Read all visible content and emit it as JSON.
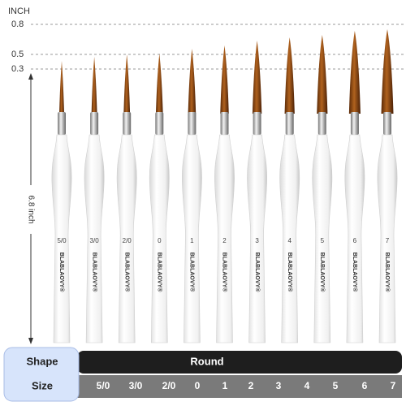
{
  "ruler": {
    "unit": "INCH",
    "marks": [
      "0.8",
      "0.5",
      "0.3"
    ],
    "length": "6.8 inch"
  },
  "brushes": {
    "brand": "BLABLAOVY®",
    "labels": [
      "5/0",
      "3/0",
      "2/0",
      "0",
      "1",
      "2",
      "3",
      "4",
      "5",
      "6",
      "7"
    ]
  },
  "table": {
    "shape_header": "Shape",
    "shape": "Round",
    "size_header": "Size",
    "sizes": [
      "5/0",
      "3/0",
      "2/0",
      "0",
      "1",
      "2",
      "3",
      "4",
      "5",
      "6",
      "7"
    ]
  }
}
